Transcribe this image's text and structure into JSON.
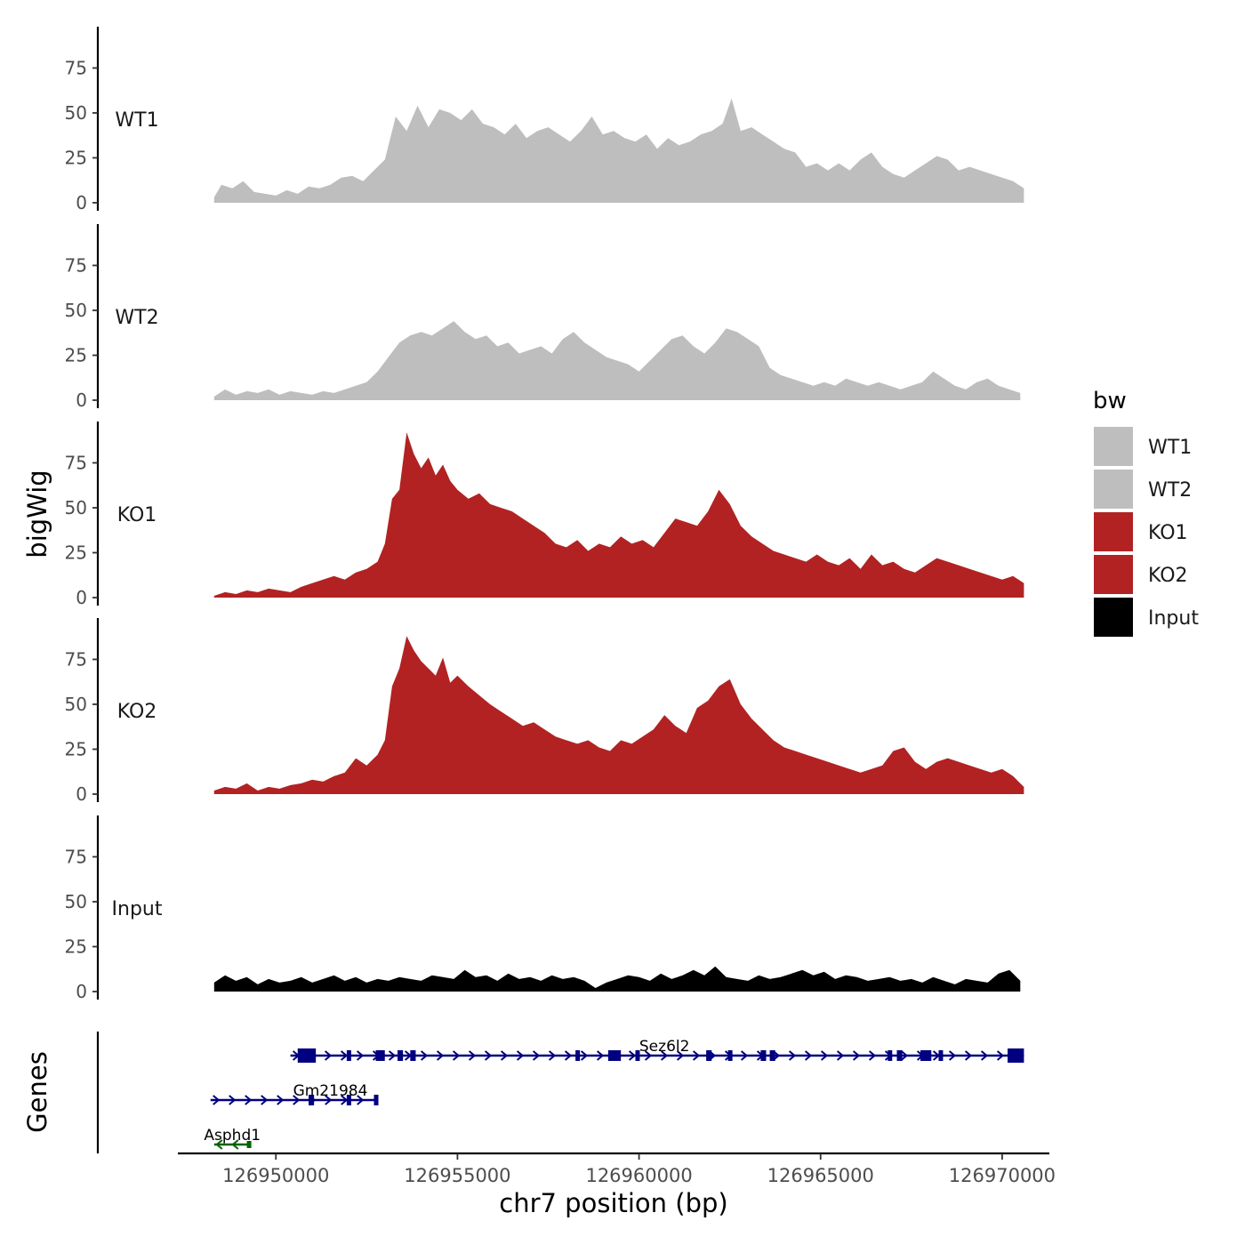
{
  "chart_data": {
    "type": "area",
    "title": "",
    "y_axis_title": "bigWig",
    "genes_axis_title": "Genes",
    "x_axis_title": "chr7 position (bp)",
    "ylim": [
      0,
      98
    ],
    "y_ticks": [
      0,
      25,
      50,
      75
    ],
    "x_range": [
      126947300,
      126971300
    ],
    "x_ticks": [
      126950000,
      126955000,
      126960000,
      126965000,
      126970000
    ],
    "x_tick_labels": [
      "126950000",
      "126955000",
      "126960000",
      "126965000",
      "126970000"
    ],
    "legend": {
      "title": "bw",
      "placement": "right",
      "entries": [
        {
          "label": "WT1",
          "color": "#bebebe"
        },
        {
          "label": "WT2",
          "color": "#bebebe"
        },
        {
          "label": "KO1",
          "color": "#b22222"
        },
        {
          "label": "KO2",
          "color": "#b22222"
        },
        {
          "label": "Input",
          "color": "#000000"
        }
      ]
    },
    "tracks": [
      {
        "name": "WT1",
        "color": "#bebebe",
        "x": [
          126948300,
          126948500,
          126948800,
          126949100,
          126949400,
          126949700,
          126950000,
          126950300,
          126950600,
          126950900,
          126951200,
          126951500,
          126951800,
          126952100,
          126952400,
          126952700,
          126953000,
          126953300,
          126953600,
          126953900,
          126954200,
          126954500,
          126954800,
          126955100,
          126955400,
          126955700,
          126956000,
          126956300,
          126956600,
          126956900,
          126957200,
          126957500,
          126957800,
          126958100,
          126958400,
          126958700,
          126959000,
          126959300,
          126959600,
          126959900,
          126960200,
          126960500,
          126960800,
          126961100,
          126961400,
          126961700,
          126962000,
          126962300,
          126962550,
          126962800,
          126963100,
          126963400,
          126963700,
          126964000,
          126964300,
          126964600,
          126964900,
          126965200,
          126965500,
          126965800,
          126966100,
          126966400,
          126966700,
          126967000,
          126967300,
          126967600,
          126967900,
          126968200,
          126968500,
          126968800,
          126969100,
          126969400,
          126969700,
          126970000,
          126970300,
          126970600
        ],
        "values": [
          3,
          10,
          8,
          12,
          6,
          5,
          4,
          7,
          5,
          9,
          8,
          10,
          14,
          15,
          12,
          18,
          24,
          48,
          40,
          54,
          42,
          52,
          50,
          46,
          52,
          44,
          42,
          38,
          44,
          36,
          40,
          42,
          38,
          34,
          40,
          48,
          38,
          40,
          36,
          34,
          38,
          30,
          36,
          32,
          34,
          38,
          40,
          44,
          58,
          40,
          42,
          38,
          34,
          30,
          28,
          20,
          22,
          18,
          22,
          18,
          24,
          28,
          20,
          16,
          14,
          18,
          22,
          26,
          24,
          18,
          20,
          18,
          16,
          14,
          12,
          8
        ]
      },
      {
        "name": "WT2",
        "color": "#bebebe",
        "x": [
          126948300,
          126948600,
          126948900,
          126949200,
          126949500,
          126949800,
          126950100,
          126950400,
          126950700,
          126951000,
          126951300,
          126951600,
          126951900,
          126952200,
          126952500,
          126952800,
          126953100,
          126953400,
          126953700,
          126954000,
          126954300,
          126954600,
          126954900,
          126955200,
          126955500,
          126955800,
          126956100,
          126956400,
          126956700,
          126957000,
          126957300,
          126957600,
          126957900,
          126958200,
          126958500,
          126958800,
          126959100,
          126959400,
          126959700,
          126960000,
          126960300,
          126960600,
          126960900,
          126961200,
          126961500,
          126961800,
          126962100,
          126962400,
          126962700,
          126963000,
          126963300,
          126963600,
          126963900,
          126964200,
          126964500,
          126964800,
          126965100,
          126965400,
          126965700,
          126966000,
          126966300,
          126966600,
          126966900,
          126967200,
          126967500,
          126967800,
          126968100,
          126968400,
          126968700,
          126969000,
          126969300,
          126969600,
          126969900,
          126970200,
          126970500
        ],
        "values": [
          2,
          6,
          3,
          5,
          4,
          6,
          3,
          5,
          4,
          3,
          5,
          4,
          6,
          8,
          10,
          16,
          24,
          32,
          36,
          38,
          36,
          40,
          44,
          38,
          34,
          36,
          30,
          32,
          26,
          28,
          30,
          26,
          34,
          38,
          32,
          28,
          24,
          22,
          20,
          16,
          22,
          28,
          34,
          36,
          30,
          26,
          32,
          40,
          38,
          34,
          30,
          18,
          14,
          12,
          10,
          8,
          10,
          8,
          12,
          10,
          8,
          10,
          8,
          6,
          8,
          10,
          16,
          12,
          8,
          6,
          10,
          12,
          8,
          6,
          4
        ]
      },
      {
        "name": "KO1",
        "color": "#b22222",
        "x": [
          126948300,
          126948600,
          126948900,
          126949200,
          126949500,
          126949800,
          126950100,
          126950400,
          126950700,
          126951000,
          126951300,
          126951600,
          126951900,
          126952200,
          126952500,
          126952800,
          126953000,
          126953200,
          126953400,
          126953600,
          126953800,
          126954000,
          126954200,
          126954400,
          126954600,
          126954800,
          126955000,
          126955300,
          126955600,
          126955900,
          126956200,
          126956500,
          126956800,
          126957100,
          126957400,
          126957700,
          126958000,
          126958300,
          126958600,
          126958900,
          126959200,
          126959500,
          126959800,
          126960100,
          126960400,
          126960700,
          126961000,
          126961300,
          126961600,
          126961900,
          126962200,
          126962500,
          126962800,
          126963100,
          126963400,
          126963700,
          126964000,
          126964300,
          126964600,
          126964900,
          126965200,
          126965500,
          126965800,
          126966100,
          126966400,
          126966700,
          126967000,
          126967300,
          126967600,
          126967900,
          126968200,
          126968500,
          126968800,
          126969100,
          126969400,
          126969700,
          126970000,
          126970300,
          126970600
        ],
        "values": [
          1,
          3,
          2,
          4,
          3,
          5,
          4,
          3,
          6,
          8,
          10,
          12,
          10,
          14,
          16,
          20,
          30,
          55,
          60,
          92,
          80,
          72,
          78,
          68,
          74,
          65,
          60,
          55,
          58,
          52,
          50,
          48,
          44,
          40,
          36,
          30,
          28,
          32,
          26,
          30,
          28,
          34,
          30,
          32,
          28,
          36,
          44,
          42,
          40,
          48,
          60,
          52,
          40,
          34,
          30,
          26,
          24,
          22,
          20,
          24,
          20,
          18,
          22,
          16,
          24,
          18,
          20,
          16,
          14,
          18,
          22,
          20,
          18,
          16,
          14,
          12,
          10,
          12,
          8
        ]
      },
      {
        "name": "KO2",
        "color": "#b22222",
        "x": [
          126948300,
          126948600,
          126948900,
          126949200,
          126949500,
          126949800,
          126950100,
          126950400,
          126950700,
          126951000,
          126951300,
          126951600,
          126951900,
          126952200,
          126952500,
          126952800,
          126953000,
          126953200,
          126953400,
          126953600,
          126953800,
          126954000,
          126954200,
          126954400,
          126954600,
          126954800,
          126955000,
          126955300,
          126955600,
          126955900,
          126956200,
          126956500,
          126956800,
          126957100,
          126957400,
          126957700,
          126958000,
          126958300,
          126958600,
          126958900,
          126959200,
          126959500,
          126959800,
          126960100,
          126960400,
          126960700,
          126961000,
          126961300,
          126961600,
          126961900,
          126962200,
          126962500,
          126962800,
          126963100,
          126963400,
          126963700,
          126964000,
          126964300,
          126964600,
          126964900,
          126965200,
          126965500,
          126965800,
          126966100,
          126966400,
          126966700,
          126967000,
          126967300,
          126967600,
          126967900,
          126968200,
          126968500,
          126968800,
          126969100,
          126969400,
          126969700,
          126970000,
          126970300,
          126970600
        ],
        "values": [
          2,
          4,
          3,
          6,
          2,
          4,
          3,
          5,
          6,
          8,
          7,
          10,
          12,
          20,
          16,
          22,
          30,
          60,
          70,
          88,
          80,
          74,
          70,
          66,
          76,
          62,
          66,
          60,
          55,
          50,
          46,
          42,
          38,
          40,
          36,
          32,
          30,
          28,
          30,
          26,
          24,
          30,
          28,
          32,
          36,
          44,
          38,
          34,
          48,
          52,
          60,
          64,
          50,
          42,
          36,
          30,
          26,
          24,
          22,
          20,
          18,
          16,
          14,
          12,
          14,
          16,
          24,
          26,
          18,
          14,
          18,
          20,
          18,
          16,
          14,
          12,
          14,
          10,
          4
        ]
      },
      {
        "name": "Input",
        "color": "#000000",
        "x": [
          126948300,
          126948600,
          126948900,
          126949200,
          126949500,
          126949800,
          126950100,
          126950400,
          126950700,
          126951000,
          126951300,
          126951600,
          126951900,
          126952200,
          126952500,
          126952800,
          126953100,
          126953400,
          126953700,
          126954000,
          126954300,
          126954600,
          126954900,
          126955200,
          126955500,
          126955800,
          126956100,
          126956400,
          126956700,
          126957000,
          126957300,
          126957600,
          126957900,
          126958200,
          126958500,
          126958800,
          126959100,
          126959400,
          126959700,
          126960000,
          126960300,
          126960600,
          126960900,
          126961200,
          126961500,
          126961800,
          126962100,
          126962400,
          126962700,
          126963000,
          126963300,
          126963600,
          126963900,
          126964200,
          126964500,
          126964800,
          126965100,
          126965400,
          126965700,
          126966000,
          126966300,
          126966600,
          126966900,
          126967200,
          126967500,
          126967800,
          126968100,
          126968400,
          126968700,
          126969000,
          126969300,
          126969600,
          126969900,
          126970200,
          126970500
        ],
        "values": [
          5,
          9,
          6,
          8,
          4,
          7,
          5,
          6,
          8,
          5,
          7,
          9,
          6,
          8,
          5,
          7,
          6,
          8,
          7,
          6,
          9,
          8,
          7,
          12,
          8,
          9,
          6,
          10,
          7,
          8,
          6,
          9,
          7,
          8,
          6,
          2,
          5,
          7,
          9,
          8,
          6,
          10,
          7,
          9,
          12,
          9,
          14,
          8,
          7,
          6,
          9,
          7,
          8,
          10,
          12,
          9,
          11,
          7,
          9,
          8,
          6,
          7,
          8,
          6,
          7,
          5,
          8,
          6,
          4,
          7,
          6,
          5,
          10,
          12,
          6
        ]
      }
    ],
    "genes": [
      {
        "name": "Sez6l2",
        "start": 126950400,
        "end": 126970600,
        "strand": "+",
        "color": "#000080",
        "exons": [
          [
            126950600,
            126951100
          ],
          [
            126951950,
            126952050
          ],
          [
            126952750,
            126953000
          ],
          [
            126953350,
            126953500
          ],
          [
            126953700,
            126953850
          ],
          [
            126958250,
            126958350
          ],
          [
            126959150,
            126959500
          ],
          [
            126959900,
            126960000
          ],
          [
            126961850,
            126962000
          ],
          [
            126962450,
            126962550
          ],
          [
            126963350,
            126963500
          ],
          [
            126963600,
            126963750
          ],
          [
            126966850,
            126966950
          ],
          [
            126967100,
            126967250
          ],
          [
            126967750,
            126968050
          ],
          [
            126968250,
            126968350
          ],
          [
            126970150,
            126970600
          ]
        ]
      },
      {
        "name": "Gm21984",
        "start": 126948200,
        "end": 126952800,
        "strand": "+",
        "color": "#000080",
        "exons": [
          [
            126950900,
            126951050
          ],
          [
            126951950,
            126952050
          ],
          [
            126952700,
            126952800
          ]
        ]
      },
      {
        "name": "Asphd1",
        "start": 126948300,
        "end": 126949300,
        "strand": "-",
        "color": "#006400",
        "exons": [
          [
            126949200,
            126949300
          ]
        ]
      }
    ]
  }
}
